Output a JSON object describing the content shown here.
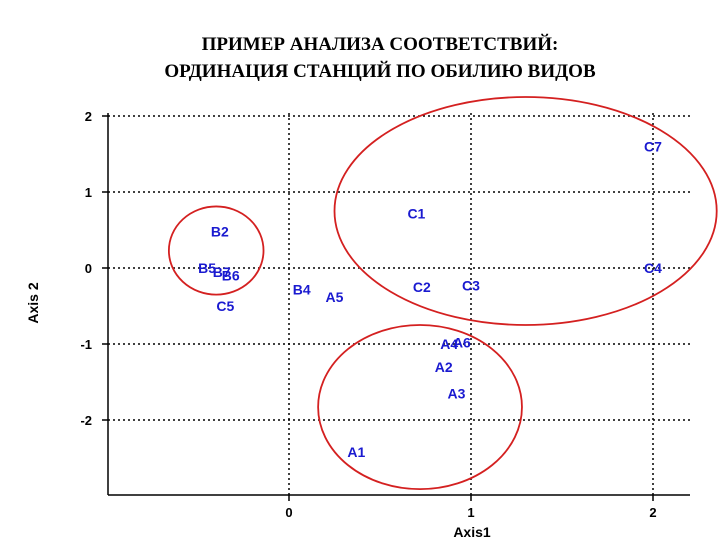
{
  "title": {
    "line1": "ПРИМЕР АНАЛИЗА СООТВЕТСТВИЙ:",
    "line2": "ОРДИНАЦИЯ СТАНЦИЙ ПО ОБИЛИЮ ВИДОВ"
  },
  "chart_data": {
    "type": "scatter",
    "xlabel": "Axis1",
    "ylabel": "Axis 2",
    "xlim": [
      -1.0,
      2.2
    ],
    "ylim": [
      -3.0,
      2.0
    ],
    "x_ticks": [
      0,
      1,
      2
    ],
    "y_ticks": [
      2,
      1,
      0,
      -1,
      -2
    ],
    "grid": true,
    "grid_style": "dotted",
    "point_color": "#1a1ad0",
    "circle_color": "#d42020",
    "points": [
      {
        "label": "C7",
        "x": 2.0,
        "y": 1.6
      },
      {
        "label": "C1",
        "x": 0.7,
        "y": 0.72
      },
      {
        "label": "C4",
        "x": 2.0,
        "y": 0.0
      },
      {
        "label": "C3",
        "x": 1.0,
        "y": -0.23
      },
      {
        "label": "C2",
        "x": 0.73,
        "y": -0.25
      },
      {
        "label": "B2",
        "x": -0.38,
        "y": 0.48
      },
      {
        "label": "B5",
        "x": -0.45,
        "y": 0.0
      },
      {
        "label": "B7",
        "x": -0.37,
        "y": -0.05
      },
      {
        "label": "B6",
        "x": -0.32,
        "y": -0.1
      },
      {
        "label": "B4",
        "x": 0.07,
        "y": -0.28
      },
      {
        "label": "A5",
        "x": 0.25,
        "y": -0.38
      },
      {
        "label": "C5",
        "x": -0.35,
        "y": -0.5
      },
      {
        "label": "A4",
        "x": 0.88,
        "y": -1.0
      },
      {
        "label": "A6",
        "x": 0.95,
        "y": -0.98
      },
      {
        "label": "A2",
        "x": 0.85,
        "y": -1.3
      },
      {
        "label": "A3",
        "x": 0.92,
        "y": -1.65
      },
      {
        "label": "A1",
        "x": 0.37,
        "y": -2.42
      }
    ],
    "ellipses": [
      {
        "name": "group-c",
        "cx": 1.3,
        "cy": 0.75,
        "rx": 1.05,
        "ry": 1.5
      },
      {
        "name": "group-b",
        "cx": -0.4,
        "cy": 0.23,
        "rx": 0.26,
        "ry": 0.58
      },
      {
        "name": "group-a",
        "cx": 0.72,
        "cy": -1.83,
        "rx": 0.56,
        "ry": 1.08
      }
    ]
  }
}
